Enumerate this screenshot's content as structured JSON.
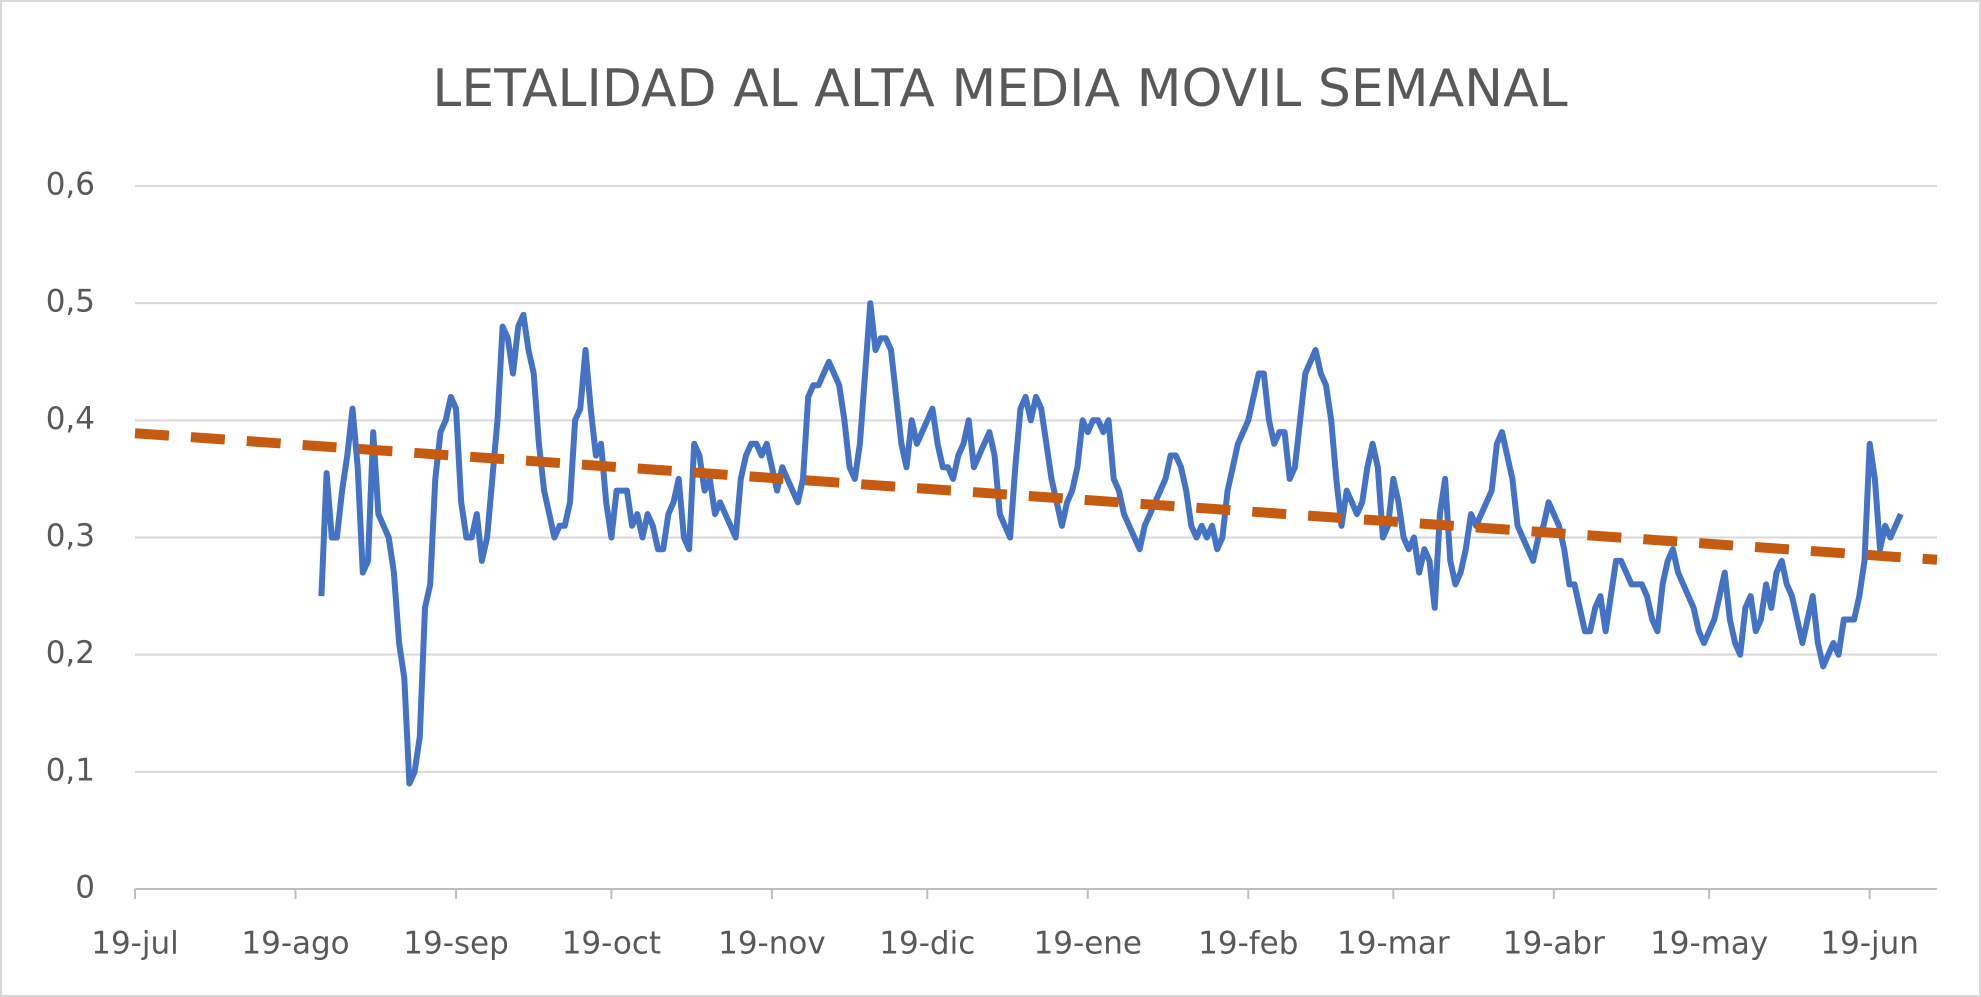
{
  "chart_data": {
    "type": "line",
    "title": "LETALIDAD AL ALTA MEDIA MOVIL SEMANAL",
    "xlim": [
      0,
      348
    ],
    "xticks": [
      {
        "value": 0,
        "label": "19-jul"
      },
      {
        "value": 31,
        "label": "19-ago"
      },
      {
        "value": 62,
        "label": "19-sep"
      },
      {
        "value": 92,
        "label": "19-oct"
      },
      {
        "value": 123,
        "label": "19-nov"
      },
      {
        "value": 153,
        "label": "19-dic"
      },
      {
        "value": 184,
        "label": "19-ene"
      },
      {
        "value": 215,
        "label": "19-feb"
      },
      {
        "value": 243,
        "label": "19-mar"
      },
      {
        "value": 274,
        "label": "19-abr"
      },
      {
        "value": 304,
        "label": "19-may"
      },
      {
        "value": 335,
        "label": "19-jun"
      }
    ],
    "ylim": [
      0,
      0.6
    ],
    "yticks": [
      0,
      {
        "value": 0.1,
        "label": "0,1"
      },
      {
        "value": 0.2,
        "label": "0,2"
      },
      {
        "value": 0.3,
        "label": "0,3"
      },
      {
        "value": 0.4,
        "label": "0,4"
      },
      {
        "value": 0.5,
        "label": "0,5"
      },
      {
        "value": 0.6,
        "label": "0,6"
      }
    ],
    "grid": true,
    "series": [
      {
        "color": "#4472c4",
        "dash": false,
        "x": [
          36,
          37,
          38,
          39,
          40,
          41,
          42,
          43,
          44,
          45,
          46,
          47,
          48,
          49,
          50,
          51,
          52,
          53,
          54,
          55,
          56,
          57,
          58,
          59,
          60,
          61,
          62,
          63,
          64,
          65,
          66,
          67,
          68,
          69,
          70,
          71,
          72,
          73,
          74,
          75,
          76,
          77,
          78,
          79,
          80,
          81,
          82,
          83,
          84,
          85,
          86,
          87,
          88,
          89,
          90,
          91,
          92,
          93,
          94,
          95,
          96,
          97,
          98,
          99,
          100,
          101,
          102,
          103,
          104,
          105,
          106,
          107,
          108,
          109,
          110,
          111,
          112,
          113,
          114,
          115,
          116,
          117,
          118,
          119,
          120,
          121,
          122,
          123,
          124,
          125,
          126,
          127,
          128,
          129,
          130,
          131,
          132,
          133,
          134,
          135,
          136,
          137,
          138,
          139,
          140,
          141,
          142,
          143,
          144,
          145,
          146,
          147,
          148,
          149,
          150,
          151,
          152,
          153,
          154,
          155,
          156,
          157,
          158,
          159,
          160,
          161,
          162,
          163,
          164,
          165,
          166,
          167,
          168,
          169,
          170,
          171,
          172,
          173,
          174,
          175,
          176,
          177,
          178,
          179,
          180,
          181,
          182,
          183,
          184,
          185,
          186,
          187,
          188,
          189,
          190,
          191,
          192,
          193,
          194,
          195,
          196,
          197,
          198,
          199,
          200,
          201,
          202,
          203,
          204,
          205,
          206,
          207,
          208,
          209,
          210,
          211,
          212,
          213,
          214,
          215,
          216,
          217,
          218,
          219,
          220,
          221,
          222,
          223,
          224,
          225,
          226,
          227,
          228,
          229,
          230,
          231,
          232,
          233,
          234,
          235,
          236,
          237,
          238,
          239,
          240,
          241,
          242,
          243,
          244,
          245,
          246,
          247,
          248,
          249,
          250,
          251,
          252,
          253,
          254,
          255,
          256,
          257,
          258,
          259,
          260,
          261,
          262,
          263,
          264,
          265,
          266,
          267,
          268,
          269,
          270,
          271,
          272,
          273,
          274,
          275,
          276,
          277,
          278,
          279,
          280,
          281,
          282,
          283,
          284,
          285,
          286,
          287,
          288,
          289,
          290,
          291,
          292,
          293,
          294,
          295,
          296,
          297,
          298,
          299,
          300,
          301,
          302,
          303,
          304,
          305,
          306,
          307,
          308,
          309,
          310,
          311,
          312,
          313,
          314,
          315,
          316,
          317,
          318,
          319,
          320,
          321,
          322,
          323,
          324,
          325,
          326,
          327,
          328,
          329,
          330,
          331,
          332,
          333,
          334,
          335,
          336,
          337,
          338,
          339,
          340,
          341
        ],
        "values": [
          0.25,
          0.355,
          0.3,
          0.3,
          0.34,
          0.37,
          0.41,
          0.36,
          0.27,
          0.28,
          0.39,
          0.32,
          0.31,
          0.3,
          0.27,
          0.21,
          0.18,
          0.09,
          0.1,
          0.13,
          0.24,
          0.26,
          0.35,
          0.39,
          0.4,
          0.42,
          0.41,
          0.33,
          0.3,
          0.3,
          0.32,
          0.28,
          0.3,
          0.35,
          0.4,
          0.48,
          0.47,
          0.44,
          0.48,
          0.49,
          0.46,
          0.44,
          0.38,
          0.34,
          0.32,
          0.3,
          0.31,
          0.31,
          0.33,
          0.4,
          0.41,
          0.46,
          0.41,
          0.37,
          0.38,
          0.33,
          0.3,
          0.34,
          0.34,
          0.34,
          0.31,
          0.32,
          0.3,
          0.32,
          0.31,
          0.29,
          0.29,
          0.32,
          0.33,
          0.35,
          0.3,
          0.29,
          0.38,
          0.37,
          0.34,
          0.35,
          0.32,
          0.33,
          0.32,
          0.31,
          0.3,
          0.35,
          0.37,
          0.38,
          0.38,
          0.37,
          0.38,
          0.36,
          0.34,
          0.36,
          0.35,
          0.34,
          0.33,
          0.35,
          0.42,
          0.43,
          0.43,
          0.44,
          0.45,
          0.44,
          0.43,
          0.4,
          0.36,
          0.35,
          0.38,
          0.44,
          0.5,
          0.46,
          0.47,
          0.47,
          0.46,
          0.42,
          0.38,
          0.36,
          0.4,
          0.38,
          0.39,
          0.4,
          0.41,
          0.38,
          0.36,
          0.36,
          0.35,
          0.37,
          0.38,
          0.4,
          0.36,
          0.37,
          0.38,
          0.39,
          0.37,
          0.32,
          0.31,
          0.3,
          0.36,
          0.41,
          0.42,
          0.4,
          0.42,
          0.41,
          0.38,
          0.35,
          0.33,
          0.31,
          0.33,
          0.34,
          0.36,
          0.4,
          0.39,
          0.4,
          0.4,
          0.39,
          0.4,
          0.35,
          0.34,
          0.32,
          0.31,
          0.3,
          0.29,
          0.31,
          0.32,
          0.33,
          0.34,
          0.35,
          0.37,
          0.37,
          0.36,
          0.34,
          0.31,
          0.3,
          0.31,
          0.3,
          0.31,
          0.29,
          0.3,
          0.34,
          0.36,
          0.38,
          0.39,
          0.4,
          0.42,
          0.44,
          0.44,
          0.4,
          0.38,
          0.39,
          0.39,
          0.35,
          0.36,
          0.4,
          0.44,
          0.45,
          0.46,
          0.44,
          0.43,
          0.4,
          0.35,
          0.31,
          0.34,
          0.33,
          0.32,
          0.33,
          0.36,
          0.38,
          0.36,
          0.3,
          0.31,
          0.35,
          0.33,
          0.3,
          0.29,
          0.3,
          0.27,
          0.29,
          0.28,
          0.24,
          0.32,
          0.35,
          0.28,
          0.26,
          0.27,
          0.29,
          0.32,
          0.31,
          0.32,
          0.33,
          0.34,
          0.38,
          0.39,
          0.37,
          0.35,
          0.31,
          0.3,
          0.29,
          0.28,
          0.3,
          0.31,
          0.33,
          0.32,
          0.31,
          0.29,
          0.26,
          0.26,
          0.24,
          0.22,
          0.22,
          0.24,
          0.25,
          0.22,
          0.25,
          0.28,
          0.28,
          0.27,
          0.26,
          0.26,
          0.26,
          0.25,
          0.23,
          0.22,
          0.26,
          0.28,
          0.29,
          0.27,
          0.26,
          0.25,
          0.24,
          0.22,
          0.21,
          0.22,
          0.23,
          0.25,
          0.27,
          0.23,
          0.21,
          0.2,
          0.24,
          0.25,
          0.22,
          0.23,
          0.26,
          0.24,
          0.27,
          0.28,
          0.26,
          0.25,
          0.23,
          0.21,
          0.23,
          0.25,
          0.21,
          0.19,
          0.2,
          0.21,
          0.2,
          0.23,
          0.23,
          0.23,
          0.25,
          0.28,
          0.38,
          0.35,
          0.29,
          0.31,
          0.3,
          0.31,
          0.32
        ]
      },
      {
        "color": "#c55a11",
        "dash": true,
        "x": [
          0,
          348
        ],
        "values": [
          0.389,
          0.281
        ]
      }
    ]
  }
}
